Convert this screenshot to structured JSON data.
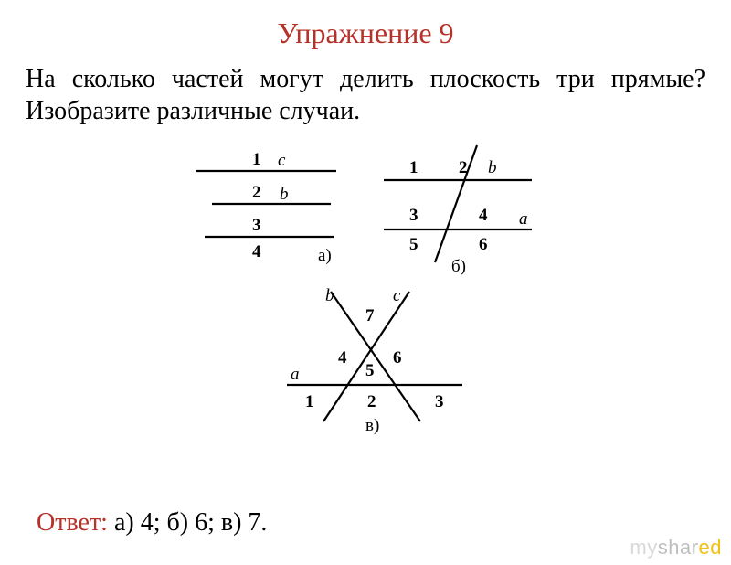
{
  "title": {
    "text": "Упражнение 9",
    "color": "#b63128"
  },
  "question": "На сколько частей могут делить плоскость три прямые? Изобразите различные случаи.",
  "answer": {
    "label": "Ответ:",
    "label_color": "#b63128",
    "text": " а) 4; б) 6; в) 7."
  },
  "diagrams": {
    "stroke": "#000000",
    "stroke_width": 2.2,
    "label_fontsize": 19,
    "case_label_fontsize": 19,
    "a": {
      "case_label": "а)",
      "lines": [
        {
          "label": "c",
          "num": "1"
        },
        {
          "label": "b",
          "num": "2"
        },
        {
          "label": "",
          "num": "3"
        },
        {
          "num_below": "4"
        }
      ]
    },
    "b": {
      "case_label": "б)",
      "line_b_label": "b",
      "line_a_label": "a",
      "regions": [
        "1",
        "2",
        "3",
        "4",
        "5",
        "6"
      ]
    },
    "c": {
      "case_label": "в)",
      "line_a_label": "a",
      "line_b_label": "b",
      "line_c_label": "c",
      "regions": [
        "1",
        "2",
        "3",
        "4",
        "5",
        "6",
        "7"
      ]
    }
  },
  "watermark": {
    "my": "my",
    "shar": "shar",
    "ed": "ed"
  }
}
